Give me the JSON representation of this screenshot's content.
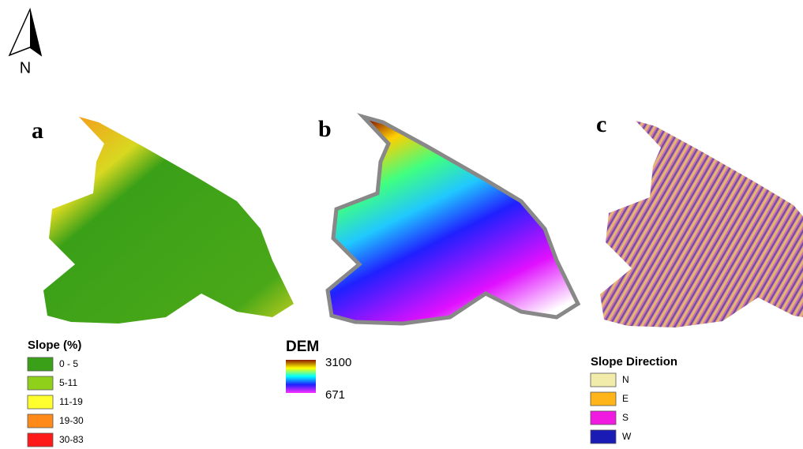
{
  "north_arrow": {
    "label": "N"
  },
  "panels": [
    {
      "label": "a"
    },
    {
      "label": "b"
    },
    {
      "label": "c"
    }
  ],
  "legends": {
    "slope": {
      "title": "Slope (%)",
      "items": [
        {
          "label": "0 - 5",
          "color": "#3aa018"
        },
        {
          "label": "5-11",
          "color": "#8fd11a"
        },
        {
          "label": "11-19",
          "color": "#ffff30"
        },
        {
          "label": "19-30",
          "color": "#ff8a1a"
        },
        {
          "label": "30-83",
          "color": "#ff1a1a"
        }
      ]
    },
    "dem": {
      "title": "DEM",
      "max": 3100,
      "min": 671
    },
    "aspect": {
      "title": "Slope Direction",
      "items": [
        {
          "label": "N",
          "color": "#f2ecaa"
        },
        {
          "label": "E",
          "color": "#ffb41a"
        },
        {
          "label": "S",
          "color": "#f01ae0"
        },
        {
          "label": "W",
          "color": "#1a1ab4"
        }
      ]
    }
  }
}
